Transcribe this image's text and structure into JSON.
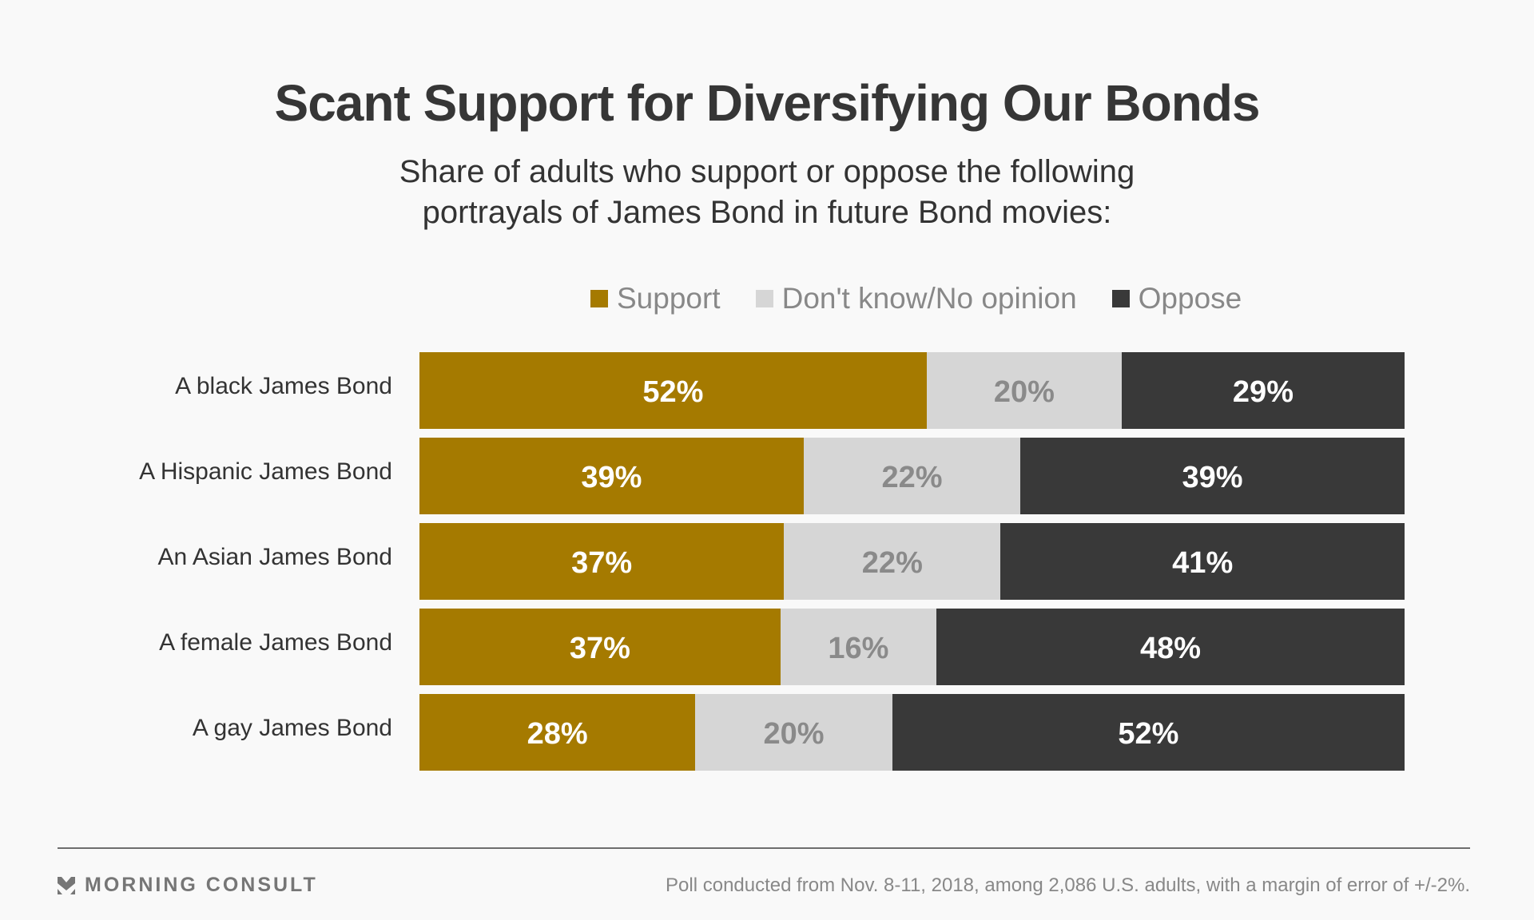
{
  "chart_data": {
    "type": "bar",
    "orientation": "horizontal",
    "stacked": true,
    "title": "Scant Support for Diversifying Our Bonds",
    "subtitle_lines": [
      "Share of adults who support or oppose the following",
      "portrayals of James Bond in future Bond movies:"
    ],
    "categories": [
      "A black James Bond",
      "A Hispanic James Bond",
      "An Asian James Bond",
      "A female James Bond",
      "A gay James Bond"
    ],
    "series": [
      {
        "name": "Support",
        "color": "#A57A00",
        "label_color": "#FFFFFF",
        "values": [
          52,
          39,
          37,
          37,
          28
        ]
      },
      {
        "name": "Don't know/No opinion",
        "color": "#D6D6D6",
        "label_color": "#8A8A8A",
        "values": [
          20,
          22,
          22,
          16,
          20
        ]
      },
      {
        "name": "Oppose",
        "color": "#393939",
        "label_color": "#FFFFFF",
        "values": [
          29,
          39,
          41,
          48,
          52
        ]
      }
    ],
    "value_suffix": "%",
    "xlabel": "",
    "ylabel": "",
    "legend_position": "top",
    "grid": false
  },
  "footer": {
    "brand": "MORNING CONSULT",
    "note": "Poll conducted from Nov. 8-11, 2018, among 2,086 U.S. adults, with a margin of error of +/-2%."
  }
}
